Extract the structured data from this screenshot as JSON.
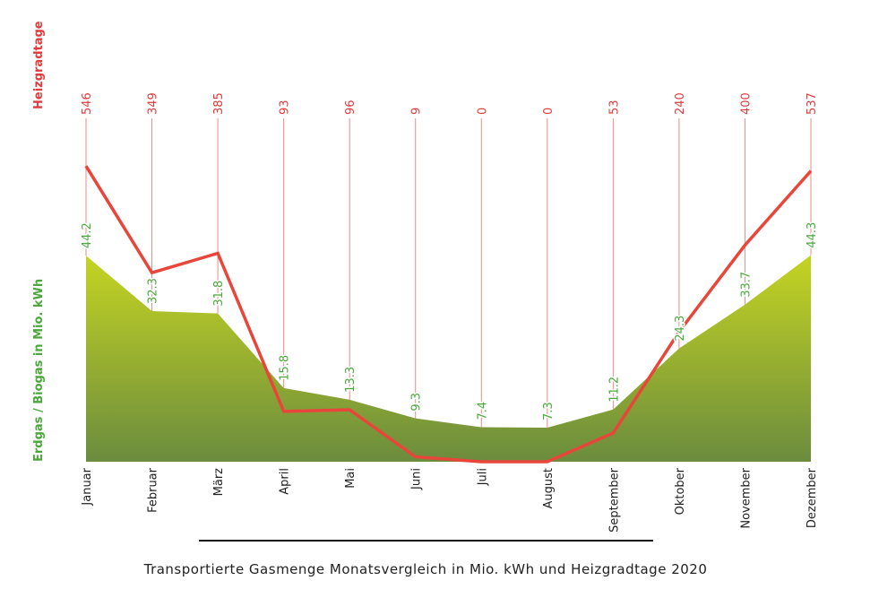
{
  "chart_data": {
    "type": "area+line",
    "title": "Transportierte Gasmenge Monatsvergleich in Mio. kWh und Heizgradtage 2020",
    "categories": [
      "Januar",
      "Februar",
      "März",
      "April",
      "Mai",
      "Juni",
      "Juli",
      "August",
      "September",
      "Oktober",
      "November",
      "Dezember"
    ],
    "series": [
      {
        "name": "Erdgas / Biogas in Mio. kWh",
        "type": "area",
        "color": "#4aa83a",
        "values": [
          44.2,
          32.3,
          31.8,
          15.8,
          13.3,
          9.3,
          7.4,
          7.3,
          11.2,
          24.3,
          33.7,
          44.3
        ]
      },
      {
        "name": "Heizgradtage",
        "type": "line",
        "color": "#e8463a",
        "values": [
          546,
          349,
          385,
          93,
          96,
          9,
          0,
          0,
          53,
          240,
          400,
          537
        ]
      }
    ],
    "colors": {
      "area_top": "#c5d422",
      "area_bottom": "#6b8c3e",
      "line": "#e8463a",
      "leader": "#f08a84",
      "gas_label": "#4aa83a",
      "hdd_label": "#e23b3b"
    },
    "grid": false,
    "legend": "none"
  }
}
